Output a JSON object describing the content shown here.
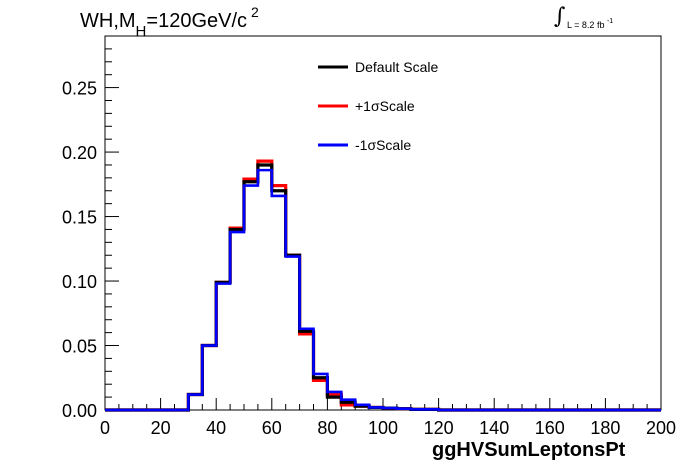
{
  "title": {
    "main": "WH,M",
    "sub": "H",
    "rest": "=120GeV/c",
    "sup": "2"
  },
  "luminosity": {
    "integral_symbol": "∫",
    "text": "L = 8.2 fb",
    "exponent": "-1"
  },
  "chart_data": {
    "type": "line",
    "xlabel": "ggHVSumLeptonsPt",
    "ylabel": "",
    "xlim": [
      0,
      200
    ],
    "ylim": [
      0,
      0.29
    ],
    "x_ticks": [
      "0",
      "20",
      "40",
      "60",
      "80",
      "100",
      "120",
      "140",
      "160",
      "180",
      "200"
    ],
    "y_ticks": [
      "0.00",
      "0.05",
      "0.10",
      "0.15",
      "0.20",
      "0.25"
    ],
    "grid": false,
    "legend_position": "top-center",
    "bin_edges": [
      0,
      5,
      10,
      15,
      20,
      25,
      30,
      35,
      40,
      45,
      50,
      55,
      60,
      65,
      70,
      75,
      80,
      85,
      90,
      95,
      100,
      105,
      110,
      115,
      120,
      125,
      130,
      135,
      140,
      145,
      150,
      155,
      160,
      165,
      170,
      175,
      180,
      185,
      190,
      195,
      200
    ],
    "series": [
      {
        "name": "Default Scale",
        "color": "#000000",
        "values": [
          0,
          0,
          0,
          0,
          0,
          0,
          0.012,
          0.05,
          0.099,
          0.14,
          0.177,
          0.19,
          0.17,
          0.12,
          0.061,
          0.025,
          0.01,
          0.006,
          0.003,
          0.002,
          0.0015,
          0.001,
          0.0005,
          0.0005,
          0,
          0,
          0,
          0,
          0,
          0,
          0,
          0,
          0,
          0,
          0,
          0,
          0,
          0,
          0,
          0
        ]
      },
      {
        "name": "+1σScale",
        "color": "#ff0000",
        "values": [
          0,
          0,
          0,
          0,
          0,
          0,
          0.012,
          0.05,
          0.099,
          0.141,
          0.179,
          0.193,
          0.174,
          0.12,
          0.059,
          0.023,
          0.012,
          0.004,
          0.003,
          0.002,
          0.0015,
          0.001,
          0.0005,
          0.0005,
          0,
          0,
          0,
          0,
          0,
          0,
          0,
          0,
          0,
          0,
          0,
          0,
          0,
          0,
          0,
          0
        ]
      },
      {
        "name": "-1σScale",
        "color": "#0000ff",
        "values": [
          0,
          0,
          0,
          0,
          0,
          0,
          0.012,
          0.05,
          0.098,
          0.138,
          0.174,
          0.186,
          0.166,
          0.119,
          0.063,
          0.028,
          0.014,
          0.008,
          0.004,
          0.002,
          0.0015,
          0.001,
          0.0005,
          0.0005,
          0,
          0,
          0,
          0,
          0,
          0,
          0,
          0,
          0,
          0,
          0,
          0,
          0,
          0,
          0,
          0
        ]
      }
    ]
  }
}
